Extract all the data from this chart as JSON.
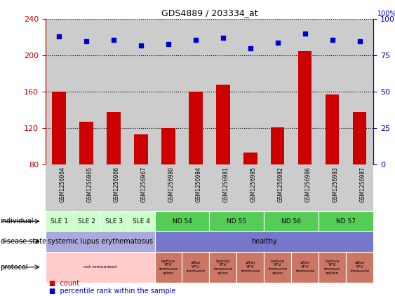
{
  "title": "GDS4889 / 203334_at",
  "samples": [
    "GSM1256964",
    "GSM1256965",
    "GSM1256966",
    "GSM1256967",
    "GSM1256980",
    "GSM1256984",
    "GSM1256981",
    "GSM1256985",
    "GSM1256982",
    "GSM1256986",
    "GSM1256983",
    "GSM1256987"
  ],
  "counts": [
    160,
    127,
    138,
    113,
    120,
    160,
    168,
    93,
    121,
    205,
    157,
    138
  ],
  "percentiles": [
    88,
    85,
    86,
    82,
    83,
    86,
    87,
    80,
    84,
    90,
    86,
    85
  ],
  "ylim_left": [
    80,
    240
  ],
  "ylim_right": [
    0,
    100
  ],
  "yticks_left": [
    80,
    120,
    160,
    200,
    240
  ],
  "yticks_right": [
    0,
    25,
    50,
    75,
    100
  ],
  "bar_color": "#cc0000",
  "dot_color": "#0000cc",
  "individual_spans": [
    {
      "start": 0,
      "end": 1,
      "label": "SLE 1",
      "color": "#ccffcc"
    },
    {
      "start": 1,
      "end": 2,
      "label": "SLE 2",
      "color": "#ccffcc"
    },
    {
      "start": 2,
      "end": 3,
      "label": "SLE 3",
      "color": "#ccffcc"
    },
    {
      "start": 3,
      "end": 4,
      "label": "SLE 4",
      "color": "#ccffcc"
    },
    {
      "start": 4,
      "end": 6,
      "label": "ND 54",
      "color": "#55cc55"
    },
    {
      "start": 6,
      "end": 8,
      "label": "ND 55",
      "color": "#55cc55"
    },
    {
      "start": 8,
      "end": 10,
      "label": "ND 56",
      "color": "#55cc55"
    },
    {
      "start": 10,
      "end": 12,
      "label": "ND 57",
      "color": "#55cc55"
    }
  ],
  "disease_spans": [
    {
      "start": 0,
      "end": 4,
      "label": "systemic lupus erythematosus",
      "color": "#aaaadd"
    },
    {
      "start": 4,
      "end": 12,
      "label": "healthy",
      "color": "#7777cc"
    }
  ],
  "protocol_spans": [
    {
      "start": 0,
      "end": 4,
      "label": "not immunized",
      "color": "#ffcccc"
    },
    {
      "start": 4,
      "end": 5,
      "label": "before\nYFV\nimmuniz\nation",
      "color": "#cc7766"
    },
    {
      "start": 5,
      "end": 6,
      "label": "after\nYFV\nimmuniz",
      "color": "#cc7766"
    },
    {
      "start": 6,
      "end": 7,
      "label": "before\nYFV\nimmuniz\nation",
      "color": "#cc7766"
    },
    {
      "start": 7,
      "end": 8,
      "label": "after\nYFV\nimmuniz",
      "color": "#cc7766"
    },
    {
      "start": 8,
      "end": 9,
      "label": "before\nYFV\nimmuniz\nation",
      "color": "#cc7766"
    },
    {
      "start": 9,
      "end": 10,
      "label": "after\nYFV\nimmuniz",
      "color": "#cc7766"
    },
    {
      "start": 10,
      "end": 11,
      "label": "before\nYFV\nimmuni\nzation",
      "color": "#cc7766"
    },
    {
      "start": 11,
      "end": 12,
      "label": "after\nYFV\nimmuniz",
      "color": "#cc7766"
    }
  ]
}
